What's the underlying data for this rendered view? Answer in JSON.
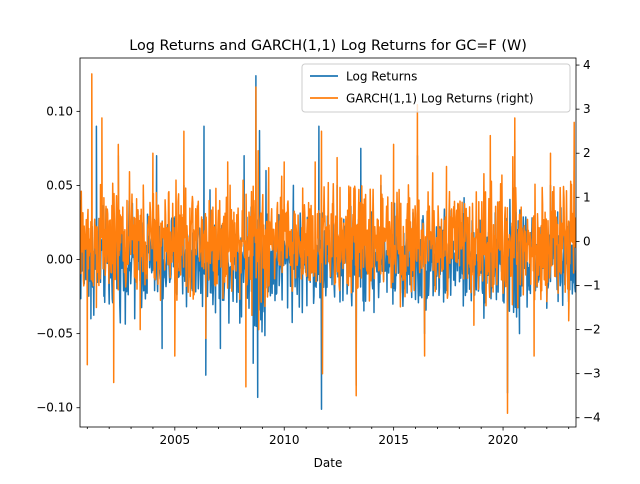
{
  "chart_data": {
    "type": "line",
    "title": "Log Returns and GARCH(1,1) Log Returns for GC=F (W)",
    "xlabel": "Date",
    "ylabel_left": "",
    "ylabel_right": "",
    "x_range": [
      "2000-09-01",
      "2023-05-01"
    ],
    "x_ticks": [
      "2005",
      "2010",
      "2015",
      "2020"
    ],
    "ylim_left": [
      -0.113,
      0.136
    ],
    "y_ticks_left": [
      "−0.10",
      "−0.05",
      "0.00",
      "0.05",
      "0.10"
    ],
    "ylim_right": [
      -4.21,
      4.16
    ],
    "y_ticks_right": [
      "−4",
      "−3",
      "−2",
      "−1",
      "0",
      "1",
      "2",
      "3",
      "4"
    ],
    "legend_position": "top-right",
    "grid": false,
    "series": [
      {
        "name": "Log Returns",
        "axis": "left",
        "color": "#1f77b4",
        "frequency": "weekly",
        "approx_points": [
          [
            "2000-09-01",
            0.01
          ],
          [
            "2001-03-01",
            -0.04
          ],
          [
            "2001-06-01",
            0.09
          ],
          [
            "2002-01-01",
            -0.03
          ],
          [
            "2002-06-01",
            0.07
          ],
          [
            "2003-03-01",
            -0.04
          ],
          [
            "2004-03-01",
            0.07
          ],
          [
            "2004-06-01",
            -0.06
          ],
          [
            "2005-06-01",
            0.05
          ],
          [
            "2006-05-01",
            0.09
          ],
          [
            "2006-06-01",
            -0.078
          ],
          [
            "2007-02-01",
            -0.06
          ],
          [
            "2008-03-01",
            0.07
          ],
          [
            "2008-08-01",
            -0.07
          ],
          [
            "2008-09-15",
            0.124
          ],
          [
            "2008-10-15",
            -0.093
          ],
          [
            "2008-11-15",
            0.087
          ],
          [
            "2009-03-01",
            0.06
          ],
          [
            "2010-06-01",
            0.05
          ],
          [
            "2011-08-01",
            0.09
          ],
          [
            "2011-09-15",
            -0.101
          ],
          [
            "2012-06-01",
            0.05
          ],
          [
            "2013-04-15",
            -0.085
          ],
          [
            "2013-07-01",
            0.075
          ],
          [
            "2014-06-01",
            0.05
          ],
          [
            "2016-02-01",
            0.07
          ],
          [
            "2016-06-01",
            -0.05
          ],
          [
            "2020-03-15",
            -0.09
          ],
          [
            "2020-07-15",
            0.08
          ],
          [
            "2020-10-01",
            -0.05
          ],
          [
            "2022-03-01",
            0.05
          ],
          [
            "2023-04-01",
            0.06
          ]
        ]
      },
      {
        "name": "GARCH(1,1) Log Returns (right)",
        "axis": "right",
        "color": "#ff7f0e",
        "frequency": "weekly",
        "approx_points": [
          [
            "2000-09-01",
            0.2
          ],
          [
            "2001-01-01",
            -2.8
          ],
          [
            "2001-03-15",
            3.8
          ],
          [
            "2001-06-01",
            -1.5
          ],
          [
            "2001-09-01",
            2.8
          ],
          [
            "2002-03-15",
            -3.2
          ],
          [
            "2002-06-01",
            2.2
          ],
          [
            "2003-06-01",
            -2.0
          ],
          [
            "2004-01-01",
            2.0
          ],
          [
            "2005-01-01",
            -2.6
          ],
          [
            "2005-06-01",
            2.5
          ],
          [
            "2006-06-01",
            -2.2
          ],
          [
            "2007-06-01",
            1.8
          ],
          [
            "2008-04-01",
            -3.3
          ],
          [
            "2008-09-15",
            3.5
          ],
          [
            "2008-11-01",
            -2.0
          ],
          [
            "2010-01-01",
            1.8
          ],
          [
            "2011-06-01",
            1.8
          ],
          [
            "2011-09-15",
            2.5
          ],
          [
            "2011-10-01",
            -3.0
          ],
          [
            "2012-06-01",
            1.9
          ],
          [
            "2013-04-15",
            -3.5
          ],
          [
            "2014-06-01",
            1.5
          ],
          [
            "2015-01-01",
            2.2
          ],
          [
            "2016-02-01",
            3.1
          ],
          [
            "2016-06-01",
            -2.6
          ],
          [
            "2017-06-01",
            1.7
          ],
          [
            "2018-09-01",
            -1.9
          ],
          [
            "2019-06-01",
            2.4
          ],
          [
            "2020-03-15",
            -3.9
          ],
          [
            "2020-07-15",
            2.8
          ],
          [
            "2021-06-01",
            -2.6
          ],
          [
            "2022-03-01",
            2.0
          ],
          [
            "2023-01-01",
            -1.8
          ],
          [
            "2023-04-01",
            2.7
          ]
        ]
      }
    ]
  }
}
